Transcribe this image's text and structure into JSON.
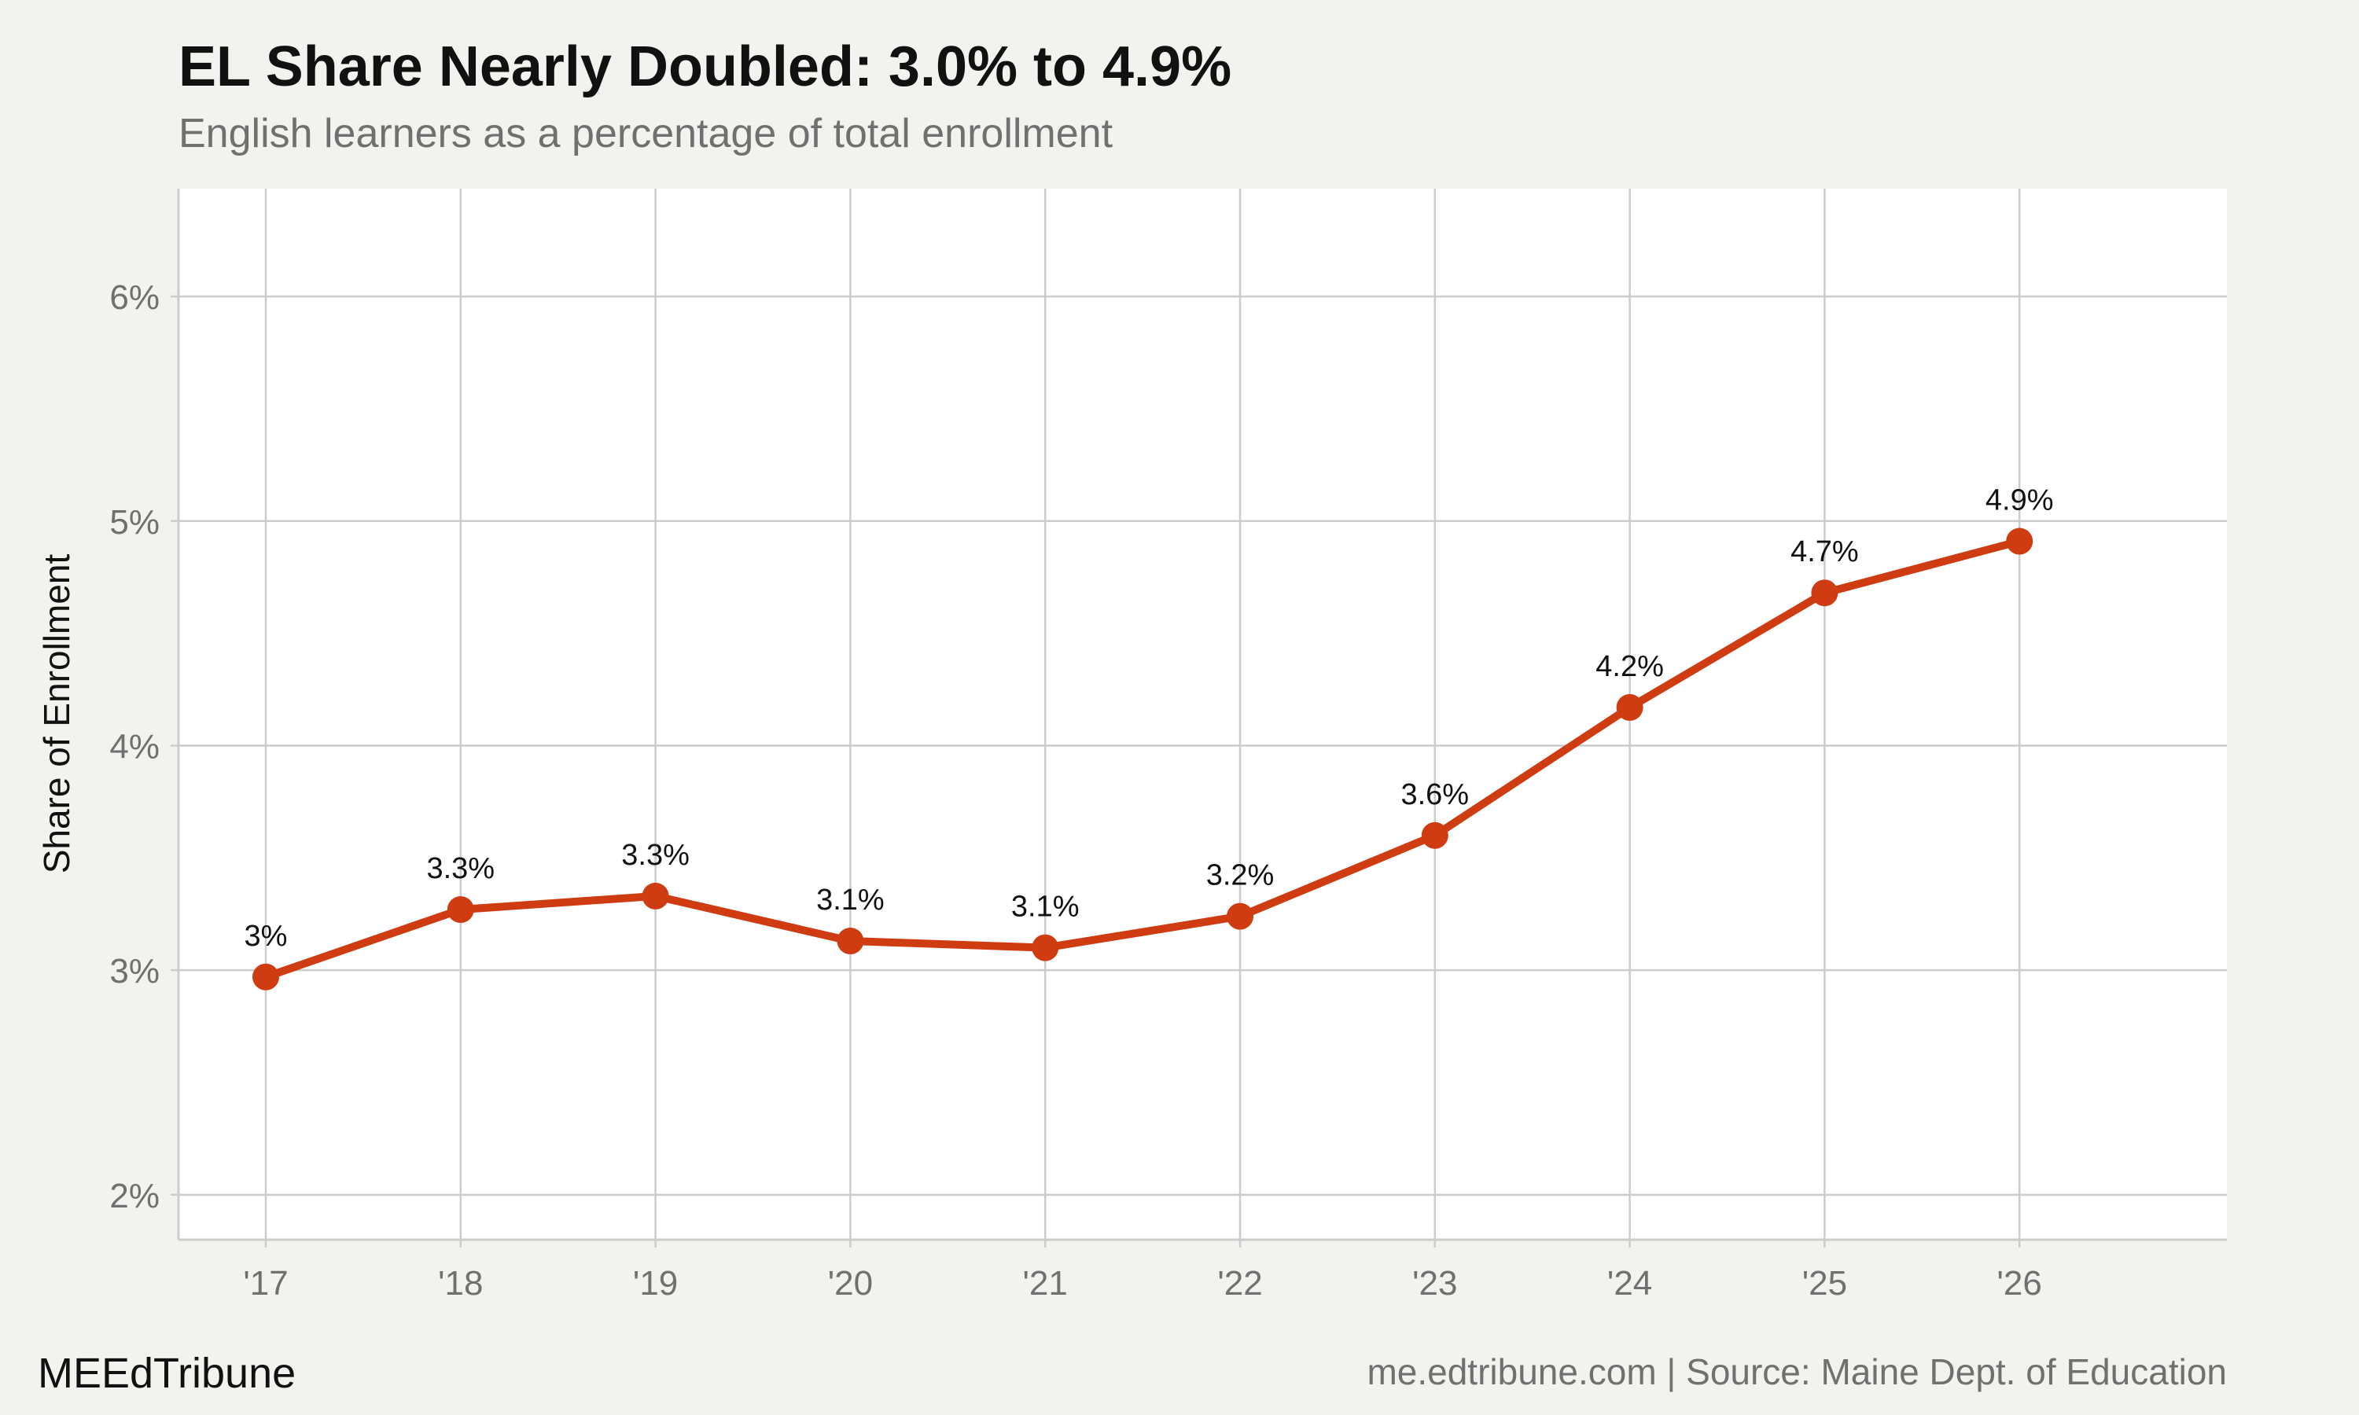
{
  "header": {
    "title": "EL Share Nearly Doubled: 3.0% to 4.9%",
    "subtitle": "English learners as a percentage of total enrollment"
  },
  "footer": {
    "brand": "MEEdTribune",
    "source": "me.edtribune.com | Source: Maine Dept. of Education"
  },
  "colors": {
    "background": "#f4f2ee",
    "panel": "#ffffff",
    "grid": "#cccccc",
    "line": "#d03c12",
    "axis_text": "#707070"
  },
  "chart_data": {
    "type": "line",
    "x": [
      "'17",
      "'18",
      "'19",
      "'20",
      "'21",
      "'22",
      "'23",
      "'24",
      "'25",
      "'26"
    ],
    "series": [
      {
        "values": [
          2.97,
          3.27,
          3.33,
          3.13,
          3.1,
          3.24,
          3.6,
          4.17,
          4.68,
          4.91
        ],
        "labels": [
          "3%",
          "3.3%",
          "3.3%",
          "3.1%",
          "3.1%",
          "3.2%",
          "3.6%",
          "4.2%",
          "4.7%",
          "4.9%"
        ]
      }
    ],
    "ylabel": "Share of Enrollment",
    "yticks": [
      2,
      3,
      4,
      5,
      6
    ],
    "ytick_labels": [
      "2%",
      "3%",
      "4%",
      "5%",
      "6%"
    ],
    "ylim": [
      1.8,
      6.48
    ],
    "grid": true
  }
}
